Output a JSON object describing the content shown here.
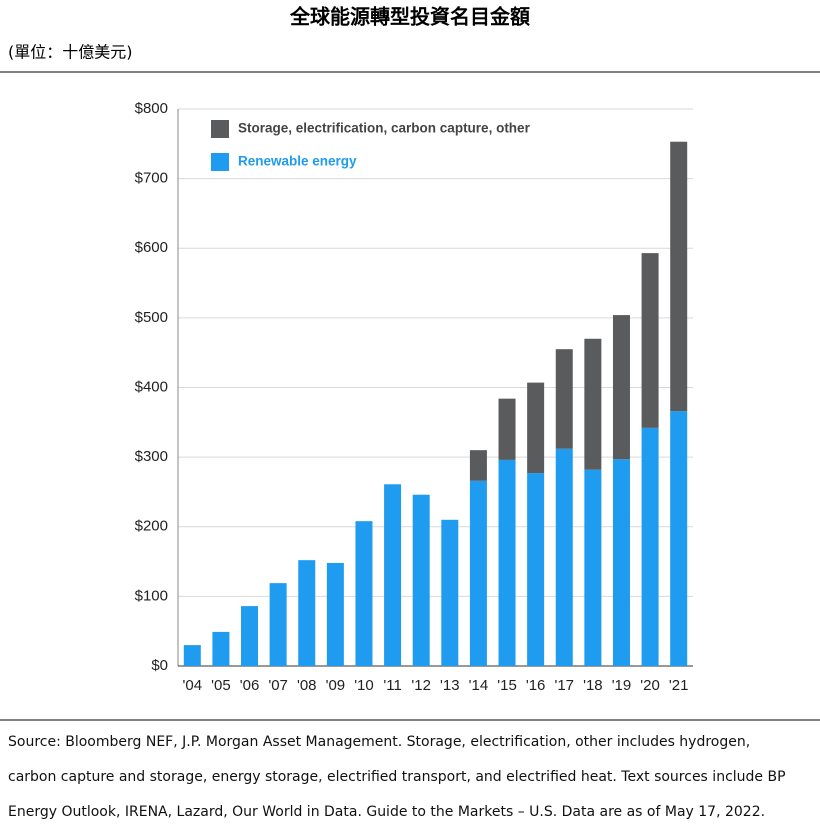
{
  "chart_data": {
    "type": "stacked_bar",
    "title": "全球能源轉型投資名目金額",
    "subtitle": "(單位：十億美元)",
    "categories": [
      "'04",
      "'05",
      "'06",
      "'07",
      "'08",
      "'09",
      "'10",
      "'11",
      "'12",
      "'13",
      "'14",
      "'15",
      "'16",
      "'17",
      "'18",
      "'19",
      "'20",
      "'21"
    ],
    "series": [
      {
        "name": "Renewable energy",
        "color": "#1f9bef",
        "values": [
          30,
          49,
          86,
          119,
          152,
          148,
          208,
          261,
          246,
          210,
          266,
          296,
          277,
          312,
          282,
          297,
          342,
          366
        ]
      },
      {
        "name": "Storage, electrification,  carbon capture, other",
        "color": "#595b5d",
        "values": [
          null,
          null,
          null,
          null,
          null,
          null,
          null,
          null,
          null,
          null,
          44,
          88,
          130,
          143,
          188,
          207,
          251,
          387
        ]
      }
    ],
    "ylim": [
      0,
      800
    ],
    "yticks": [
      {
        "value": 0,
        "label": "$0"
      },
      {
        "value": 100,
        "label": "$100"
      },
      {
        "value": 200,
        "label": "$200"
      },
      {
        "value": 300,
        "label": "$300"
      },
      {
        "value": 400,
        "label": "$400"
      },
      {
        "value": 500,
        "label": "$500"
      },
      {
        "value": 600,
        "label": "$600"
      },
      {
        "value": 700,
        "label": "$700"
      },
      {
        "value": 800,
        "label": "$800"
      }
    ],
    "grid": true,
    "source": [
      "Source: Bloomberg NEF, J.P. Morgan Asset Management. Storage, electrification, other includes hydrogen,",
      "carbon capture and storage, energy storage, electrified transport, and electrified heat. Text sources include BP",
      "Energy Outlook, IRENA, Lazard, Our World in Data. Guide to the Markets – U.S. Data are as of May 17, 2022."
    ]
  }
}
